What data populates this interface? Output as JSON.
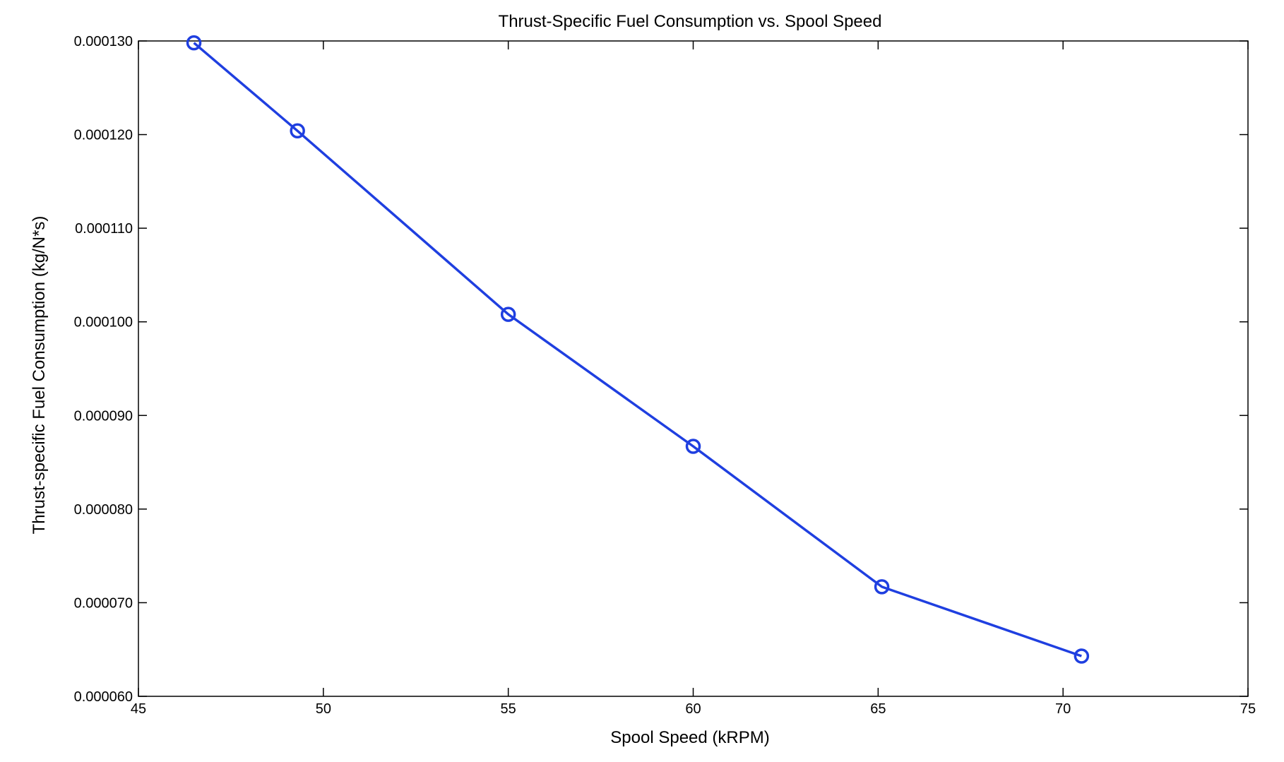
{
  "chart_data": {
    "type": "line",
    "title": "Thrust-Specific Fuel Consumption vs. Spool Speed",
    "xlabel": "Spool Speed (kRPM)",
    "ylabel": "Thrust-specific Fuel Consumption (kg/N*s)",
    "xlim": [
      45,
      75
    ],
    "ylim": [
      6e-05,
      0.00013
    ],
    "x_ticks": [
      "45",
      "50",
      "55",
      "60",
      "65",
      "70",
      "75"
    ],
    "y_ticks": [
      "0.000060",
      "0.000070",
      "0.000080",
      "0.000090",
      "0.000100",
      "0.000110",
      "0.000120",
      "0.000130"
    ],
    "grid": false,
    "series": [
      {
        "marker": "circle",
        "color": "#1f3fe0",
        "x": [
          46.5,
          49.3,
          55.0,
          60.0,
          65.1,
          70.5
        ],
        "y": [
          0.0001298,
          0.0001204,
          0.0001008,
          8.67e-05,
          7.17e-05,
          6.43e-05
        ]
      }
    ]
  }
}
